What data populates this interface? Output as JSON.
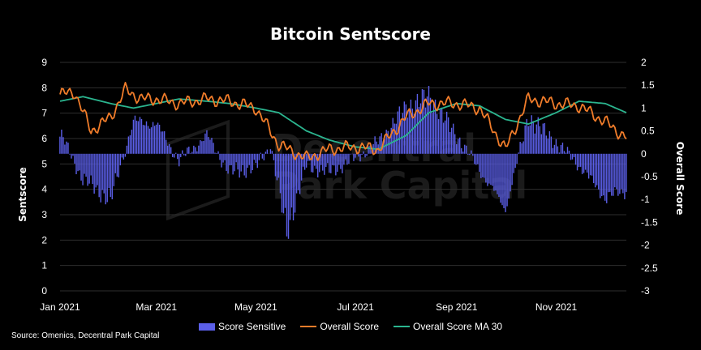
{
  "title": "Bitcoin Sentscore",
  "source": "Source: Omenics, Decentral Park Capital",
  "watermark": {
    "line1": "Decentral",
    "line2": "Park Capital"
  },
  "colors": {
    "bars": "#5b5fe8",
    "overall": "#f07c2a",
    "ma30": "#2bb58f",
    "background": "#000000",
    "grid": "#2e2e2e"
  },
  "chart_data": {
    "type": "bar+line",
    "x_ticks": [
      "Jan 2021",
      "Mar 2021",
      "May 2021",
      "Jul 2021",
      "Sep 2021",
      "Nov 2021"
    ],
    "x_range": [
      "2021-01-01",
      "2021-12-14"
    ],
    "left_axis": {
      "label": "Sentscore",
      "range": [
        0,
        9
      ],
      "ticks": [
        "0",
        "1",
        "2",
        "3",
        "4",
        "5",
        "6",
        "7",
        "8",
        "9"
      ]
    },
    "right_axis": {
      "label": "Overall Score",
      "range": [
        -3,
        2
      ],
      "ticks": [
        "-3",
        "-2.5",
        "-2",
        "-1.5",
        "-1",
        "-0.5",
        "0",
        "0.5",
        "1",
        "1.5",
        "2"
      ]
    },
    "grid": true,
    "legend_position": "bottom",
    "series": [
      {
        "name": "Score Sensitive",
        "type": "bar",
        "axis": "left",
        "baseline": 5.4,
        "x": [
          "2021-01-01",
          "2021-01-15",
          "2021-02-01",
          "2021-02-15",
          "2021-03-01",
          "2021-03-15",
          "2021-04-01",
          "2021-04-15",
          "2021-05-01",
          "2021-05-10",
          "2021-05-20",
          "2021-06-01",
          "2021-06-15",
          "2021-07-01",
          "2021-07-15",
          "2021-08-01",
          "2021-08-15",
          "2021-09-01",
          "2021-09-15",
          "2021-10-01",
          "2021-10-15",
          "2021-11-01",
          "2021-11-15",
          "2021-12-01",
          "2021-12-14"
        ],
        "values": [
          6.3,
          4.3,
          3.4,
          6.8,
          6.7,
          5.1,
          6.2,
          4.6,
          4.8,
          5.8,
          2.0,
          4.9,
          4.6,
          5.2,
          5.9,
          7.4,
          7.9,
          6.2,
          4.7,
          3.0,
          7.0,
          5.9,
          4.9,
          3.5,
          3.8
        ]
      },
      {
        "name": "Overall Score",
        "type": "line",
        "axis": "right",
        "x": [
          "2021-01-01",
          "2021-01-10",
          "2021-01-20",
          "2021-02-01",
          "2021-02-10",
          "2021-02-20",
          "2021-03-01",
          "2021-03-15",
          "2021-04-01",
          "2021-04-15",
          "2021-05-01",
          "2021-05-15",
          "2021-06-01",
          "2021-06-15",
          "2021-07-01",
          "2021-07-15",
          "2021-08-01",
          "2021-08-15",
          "2021-09-01",
          "2021-09-15",
          "2021-10-01",
          "2021-10-15",
          "2021-11-01",
          "2021-11-15",
          "2021-12-01",
          "2021-12-14"
        ],
        "values": [
          1.3,
          1.35,
          0.5,
          0.8,
          1.4,
          1.2,
          1.2,
          1.1,
          1.2,
          1.15,
          1.0,
          0.2,
          -0.1,
          0.1,
          0.15,
          0.1,
          0.8,
          1.1,
          1.1,
          1.0,
          0.1,
          1.2,
          1.1,
          1.05,
          0.7,
          0.35
        ]
      },
      {
        "name": "Overall Score MA 30",
        "type": "line",
        "axis": "right",
        "x": [
          "2021-01-01",
          "2021-01-15",
          "2021-02-01",
          "2021-02-15",
          "2021-03-01",
          "2021-03-15",
          "2021-04-01",
          "2021-04-15",
          "2021-05-01",
          "2021-05-15",
          "2021-06-01",
          "2021-06-15",
          "2021-07-01",
          "2021-07-15",
          "2021-08-01",
          "2021-08-15",
          "2021-09-01",
          "2021-09-15",
          "2021-10-01",
          "2021-10-15",
          "2021-11-01",
          "2021-11-15",
          "2021-12-01",
          "2021-12-14"
        ],
        "values": [
          1.15,
          1.25,
          1.1,
          1.0,
          1.1,
          1.2,
          1.15,
          1.1,
          1.0,
          0.9,
          0.5,
          0.3,
          0.15,
          0.1,
          0.4,
          0.9,
          1.1,
          1.05,
          0.75,
          0.65,
          0.9,
          1.15,
          1.1,
          0.9
        ]
      }
    ]
  }
}
